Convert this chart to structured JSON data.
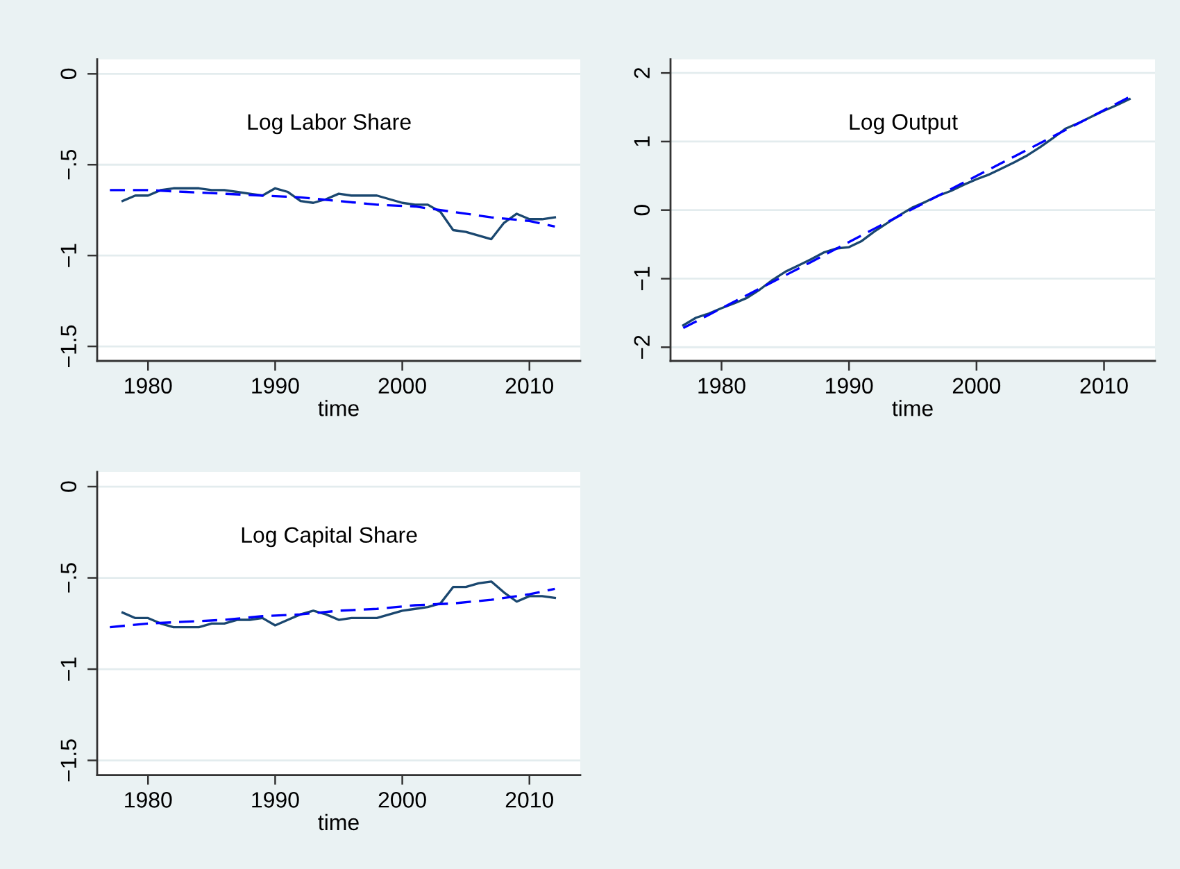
{
  "chart_data": [
    {
      "type": "line",
      "title": "Log Labor Share",
      "xlabel": "time",
      "xlim": [
        1976,
        2014
      ],
      "xticks": [
        1980,
        1990,
        2000,
        2010
      ],
      "ylim": [
        -1.58,
        0.08
      ],
      "yticks": [
        0,
        {
          "value": -0.5,
          "label": "−.5"
        },
        {
          "value": -1,
          "label": "−1"
        },
        {
          "value": -1.5,
          "label": "−1.5"
        }
      ],
      "grid": "y",
      "series": [
        {
          "color": "#1a476f",
          "line_style": "solid",
          "x": [
            1978,
            1979,
            1980,
            1981,
            1982,
            1983,
            1984,
            1985,
            1986,
            1987,
            1988,
            1989,
            1990,
            1991,
            1992,
            1993,
            1994,
            1995,
            1996,
            1997,
            1998,
            1999,
            2000,
            2001,
            2002,
            2003,
            2004,
            2005,
            2006,
            2007,
            2008,
            2009,
            2010,
            2011,
            2012
          ],
          "values": [
            -0.7,
            -0.67,
            -0.67,
            -0.64,
            -0.63,
            -0.63,
            -0.63,
            -0.64,
            -0.64,
            -0.65,
            -0.66,
            -0.67,
            -0.63,
            -0.65,
            -0.7,
            -0.71,
            -0.69,
            -0.66,
            -0.67,
            -0.67,
            -0.67,
            -0.69,
            -0.71,
            -0.72,
            -0.72,
            -0.76,
            -0.86,
            -0.87,
            -0.89,
            -0.91,
            -0.82,
            -0.77,
            -0.8,
            -0.8,
            -0.79
          ]
        },
        {
          "color": "#0000ff",
          "line_style": "dashed",
          "x": [
            1977,
            1980,
            1983,
            1986,
            1989,
            1992,
            1995,
            1998,
            2001,
            2004,
            2007,
            2010,
            2012
          ],
          "values": [
            -0.64,
            -0.64,
            -0.65,
            -0.66,
            -0.67,
            -0.68,
            -0.7,
            -0.72,
            -0.73,
            -0.76,
            -0.79,
            -0.81,
            -0.84
          ]
        }
      ]
    },
    {
      "type": "line",
      "title": "Log Output",
      "xlabel": "time",
      "xlim": [
        1976,
        2014
      ],
      "xticks": [
        1980,
        1990,
        2000,
        2010
      ],
      "ylim": [
        -2.2,
        2.2
      ],
      "yticks": [
        2,
        1,
        0,
        {
          "value": -1,
          "label": "−1"
        },
        {
          "value": -2,
          "label": "−2"
        }
      ],
      "grid": "y",
      "series": [
        {
          "color": "#1a476f",
          "line_style": "solid",
          "x": [
            1977,
            1978,
            1979,
            1980,
            1981,
            1982,
            1983,
            1984,
            1985,
            1986,
            1987,
            1988,
            1989,
            1990,
            1991,
            1992,
            1993,
            1994,
            1995,
            1996,
            1997,
            1998,
            1999,
            2000,
            2001,
            2002,
            2003,
            2004,
            2005,
            2006,
            2007,
            2008,
            2009,
            2010,
            2011,
            2012
          ],
          "values": [
            -1.68,
            -1.57,
            -1.51,
            -1.43,
            -1.36,
            -1.28,
            -1.16,
            -1.02,
            -0.9,
            -0.81,
            -0.72,
            -0.62,
            -0.56,
            -0.54,
            -0.45,
            -0.31,
            -0.19,
            -0.07,
            0.04,
            0.12,
            0.21,
            0.28,
            0.37,
            0.45,
            0.52,
            0.61,
            0.7,
            0.8,
            0.92,
            1.05,
            1.19,
            1.27,
            1.36,
            1.45,
            1.53,
            1.62
          ]
        },
        {
          "color": "#0000ff",
          "line_style": "dashed",
          "x": [
            1977,
            1982,
            1987,
            1992,
            1997,
            2002,
            2007,
            2012
          ],
          "values": [
            -1.72,
            -1.24,
            -0.76,
            -0.27,
            0.21,
            0.69,
            1.17,
            1.65
          ]
        }
      ]
    },
    {
      "type": "line",
      "title": "Log Capital Share",
      "xlabel": "time",
      "xlim": [
        1976,
        2014
      ],
      "xticks": [
        1980,
        1990,
        2000,
        2010
      ],
      "ylim": [
        -1.58,
        0.08
      ],
      "yticks": [
        0,
        {
          "value": -0.5,
          "label": "−.5"
        },
        {
          "value": -1,
          "label": "−1"
        },
        {
          "value": -1.5,
          "label": "−1.5"
        }
      ],
      "grid": "y",
      "series": [
        {
          "color": "#1a476f",
          "line_style": "solid",
          "x": [
            1978,
            1979,
            1980,
            1981,
            1982,
            1983,
            1984,
            1985,
            1986,
            1987,
            1988,
            1989,
            1990,
            1991,
            1992,
            1993,
            1994,
            1995,
            1996,
            1997,
            1998,
            1999,
            2000,
            2001,
            2002,
            2003,
            2004,
            2005,
            2006,
            2007,
            2008,
            2009,
            2010,
            2011,
            2012
          ],
          "values": [
            -0.69,
            -0.72,
            -0.72,
            -0.75,
            -0.77,
            -0.77,
            -0.77,
            -0.75,
            -0.75,
            -0.73,
            -0.73,
            -0.72,
            -0.76,
            -0.73,
            -0.7,
            -0.68,
            -0.7,
            -0.73,
            -0.72,
            -0.72,
            -0.72,
            -0.7,
            -0.68,
            -0.67,
            -0.66,
            -0.64,
            -0.55,
            -0.55,
            -0.53,
            -0.52,
            -0.58,
            -0.63,
            -0.6,
            -0.6,
            -0.61
          ]
        },
        {
          "color": "#0000ff",
          "line_style": "dashed",
          "x": [
            1977,
            1980,
            1983,
            1986,
            1989,
            1992,
            1995,
            1998,
            2001,
            2004,
            2007,
            2010,
            2012
          ],
          "values": [
            -0.77,
            -0.75,
            -0.74,
            -0.73,
            -0.71,
            -0.7,
            -0.68,
            -0.67,
            -0.65,
            -0.64,
            -0.62,
            -0.59,
            -0.56
          ]
        }
      ]
    }
  ]
}
